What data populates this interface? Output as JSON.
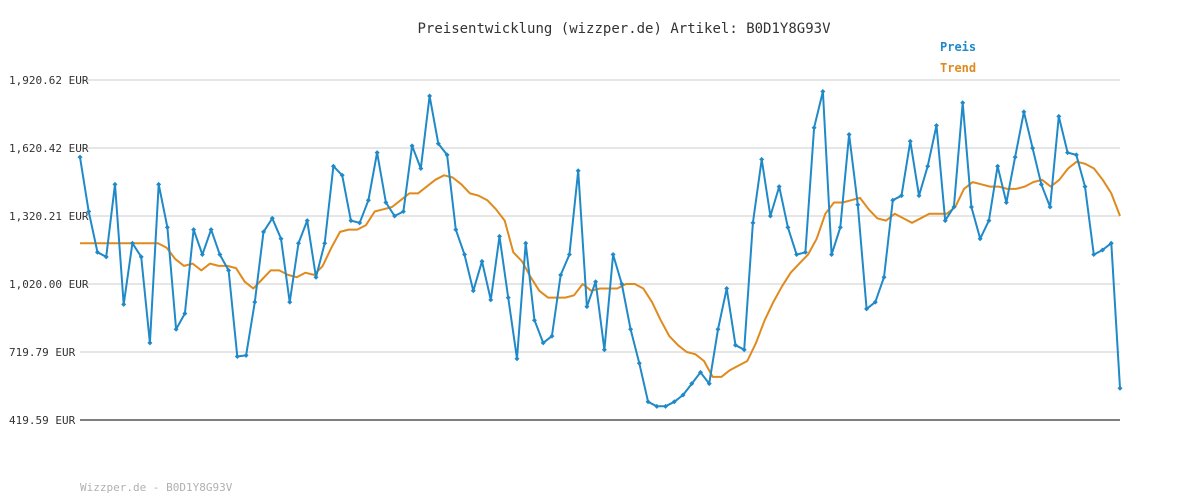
{
  "footer": "Wizzper.de - B0D1Y8G93V",
  "colors": {
    "preis": "#2089c8",
    "trend": "#e08a1e",
    "grid": "#e6e6e6",
    "axis": "#555555"
  },
  "chart_data": {
    "type": "line",
    "title": "Preisentwicklung (wizzper.de) Artikel: B0D1Y8G93V",
    "ylim": [
      419.59,
      1920.62
    ],
    "yticks": [
      1920.62,
      1620.42,
      1320.21,
      1020.0,
      719.79,
      419.59
    ],
    "ytick_labels": [
      "1,920.62 EUR",
      "1,620.42 EUR",
      "1,320.21 EUR",
      "1,020.00 EUR",
      "719.79 EUR",
      "419.59 EUR"
    ],
    "grid": true,
    "legend_position": "top-right",
    "series": [
      {
        "name": "Preis",
        "values": [
          1580,
          1340,
          1160,
          1140,
          1460,
          930,
          1200,
          1140,
          760,
          1460,
          1270,
          820,
          890,
          1260,
          1150,
          1260,
          1150,
          1080,
          700,
          705,
          940,
          1250,
          1310,
          1220,
          940,
          1200,
          1300,
          1050,
          1200,
          1540,
          1500,
          1300,
          1290,
          1390,
          1600,
          1380,
          1320,
          1340,
          1630,
          1530,
          1850,
          1640,
          1590,
          1260,
          1150,
          990,
          1120,
          950,
          1230,
          960,
          690,
          1200,
          860,
          760,
          790,
          1060,
          1150,
          1520,
          920,
          1030,
          730,
          1150,
          1020,
          820,
          670,
          500,
          480,
          480,
          500,
          530,
          580,
          630,
          580,
          820,
          1000,
          750,
          730,
          1290,
          1570,
          1320,
          1450,
          1270,
          1150,
          1160,
          1710,
          1870,
          1150,
          1270,
          1680,
          1370,
          910,
          940,
          1050,
          1390,
          1410,
          1650,
          1410,
          1540,
          1720,
          1300,
          1360,
          1820,
          1360,
          1220,
          1300,
          1540,
          1380,
          1580,
          1780,
          1620,
          1460,
          1360,
          1760,
          1600,
          1590,
          1450,
          1150,
          1170,
          1200,
          560
        ]
      },
      {
        "name": "Trend",
        "values": [
          1200,
          1200,
          1200,
          1200,
          1200,
          1200,
          1200,
          1200,
          1200,
          1200,
          1180,
          1130,
          1100,
          1110,
          1080,
          1110,
          1100,
          1100,
          1090,
          1030,
          1000,
          1040,
          1080,
          1080,
          1060,
          1050,
          1070,
          1060,
          1100,
          1180,
          1250,
          1260,
          1260,
          1280,
          1340,
          1350,
          1360,
          1390,
          1420,
          1420,
          1450,
          1480,
          1500,
          1490,
          1460,
          1420,
          1410,
          1390,
          1350,
          1300,
          1160,
          1120,
          1050,
          990,
          960,
          960,
          960,
          970,
          1020,
          990,
          1000,
          1000,
          1000,
          1020,
          1020,
          1000,
          940,
          860,
          790,
          750,
          720,
          710,
          680,
          610,
          610,
          640,
          660,
          680,
          760,
          860,
          940,
          1010,
          1070,
          1110,
          1150,
          1220,
          1330,
          1380,
          1380,
          1390,
          1400,
          1350,
          1310,
          1300,
          1330,
          1310,
          1290,
          1310,
          1330,
          1330,
          1330,
          1360,
          1440,
          1470,
          1460,
          1450,
          1450,
          1440,
          1440,
          1450,
          1470,
          1480,
          1450,
          1480,
          1530,
          1560,
          1550,
          1530,
          1480,
          1420,
          1320
        ]
      }
    ]
  }
}
